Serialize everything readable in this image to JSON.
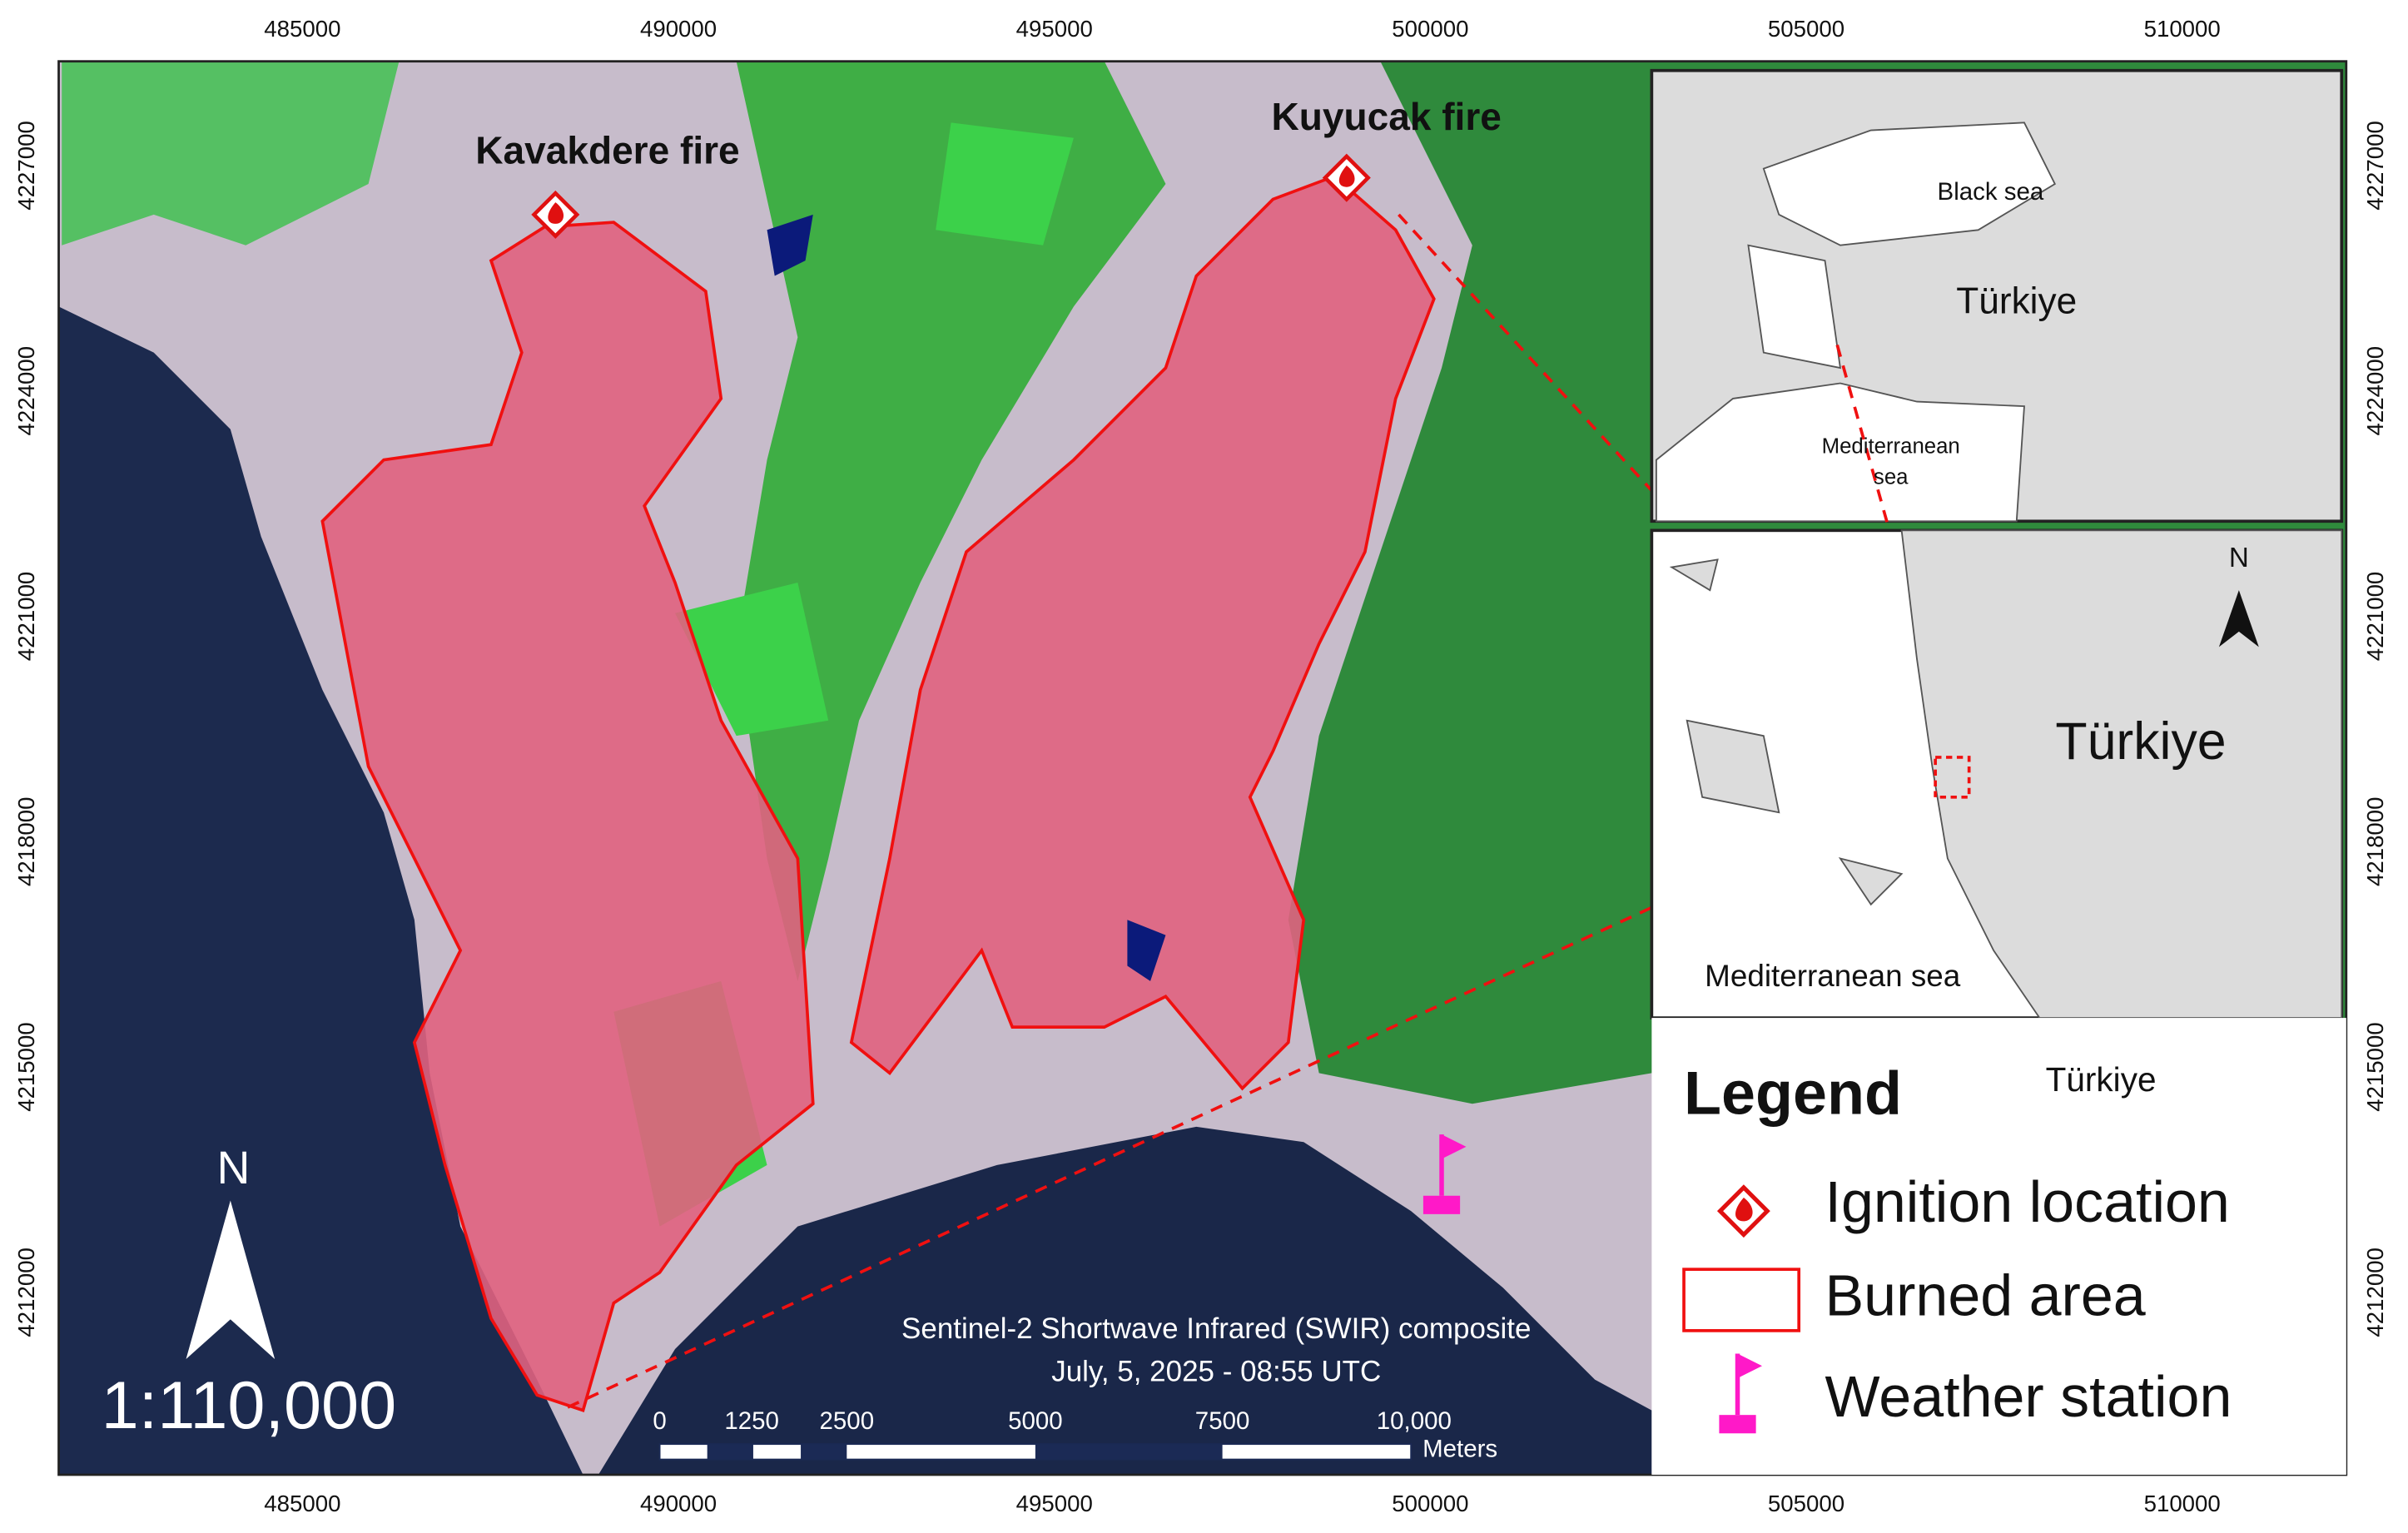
{
  "coordinates": {
    "x": [
      "485000",
      "490000",
      "495000",
      "500000",
      "505000",
      "510000"
    ],
    "y": [
      "4212000",
      "4215000",
      "4218000",
      "4221000",
      "4224000",
      "4227000"
    ]
  },
  "map": {
    "fires": [
      "Kavakdere fire",
      "Kuyucak fire"
    ],
    "caption": [
      "Sentinel-2 Shortwave Infrared (SWIR) composite",
      "July, 5, 2025 - 08:55 UTC"
    ],
    "scale": "1:110,000",
    "north": "N"
  },
  "scale_bar": {
    "labels": [
      "0",
      "1250",
      "2500",
      "5000",
      "7500",
      "10,000"
    ],
    "unit": "Meters"
  },
  "inset_region": {
    "labels": [
      "Black sea",
      "Türkiye",
      "Mediterranean",
      "sea"
    ]
  },
  "inset_local": {
    "labels": [
      "Türkiye",
      "Mediterranean sea"
    ],
    "north": "N"
  },
  "legend": {
    "title": "Legend",
    "subtitle": "Türkiye",
    "items": [
      "Ignition location",
      "Burned area",
      "Weather station"
    ]
  }
}
